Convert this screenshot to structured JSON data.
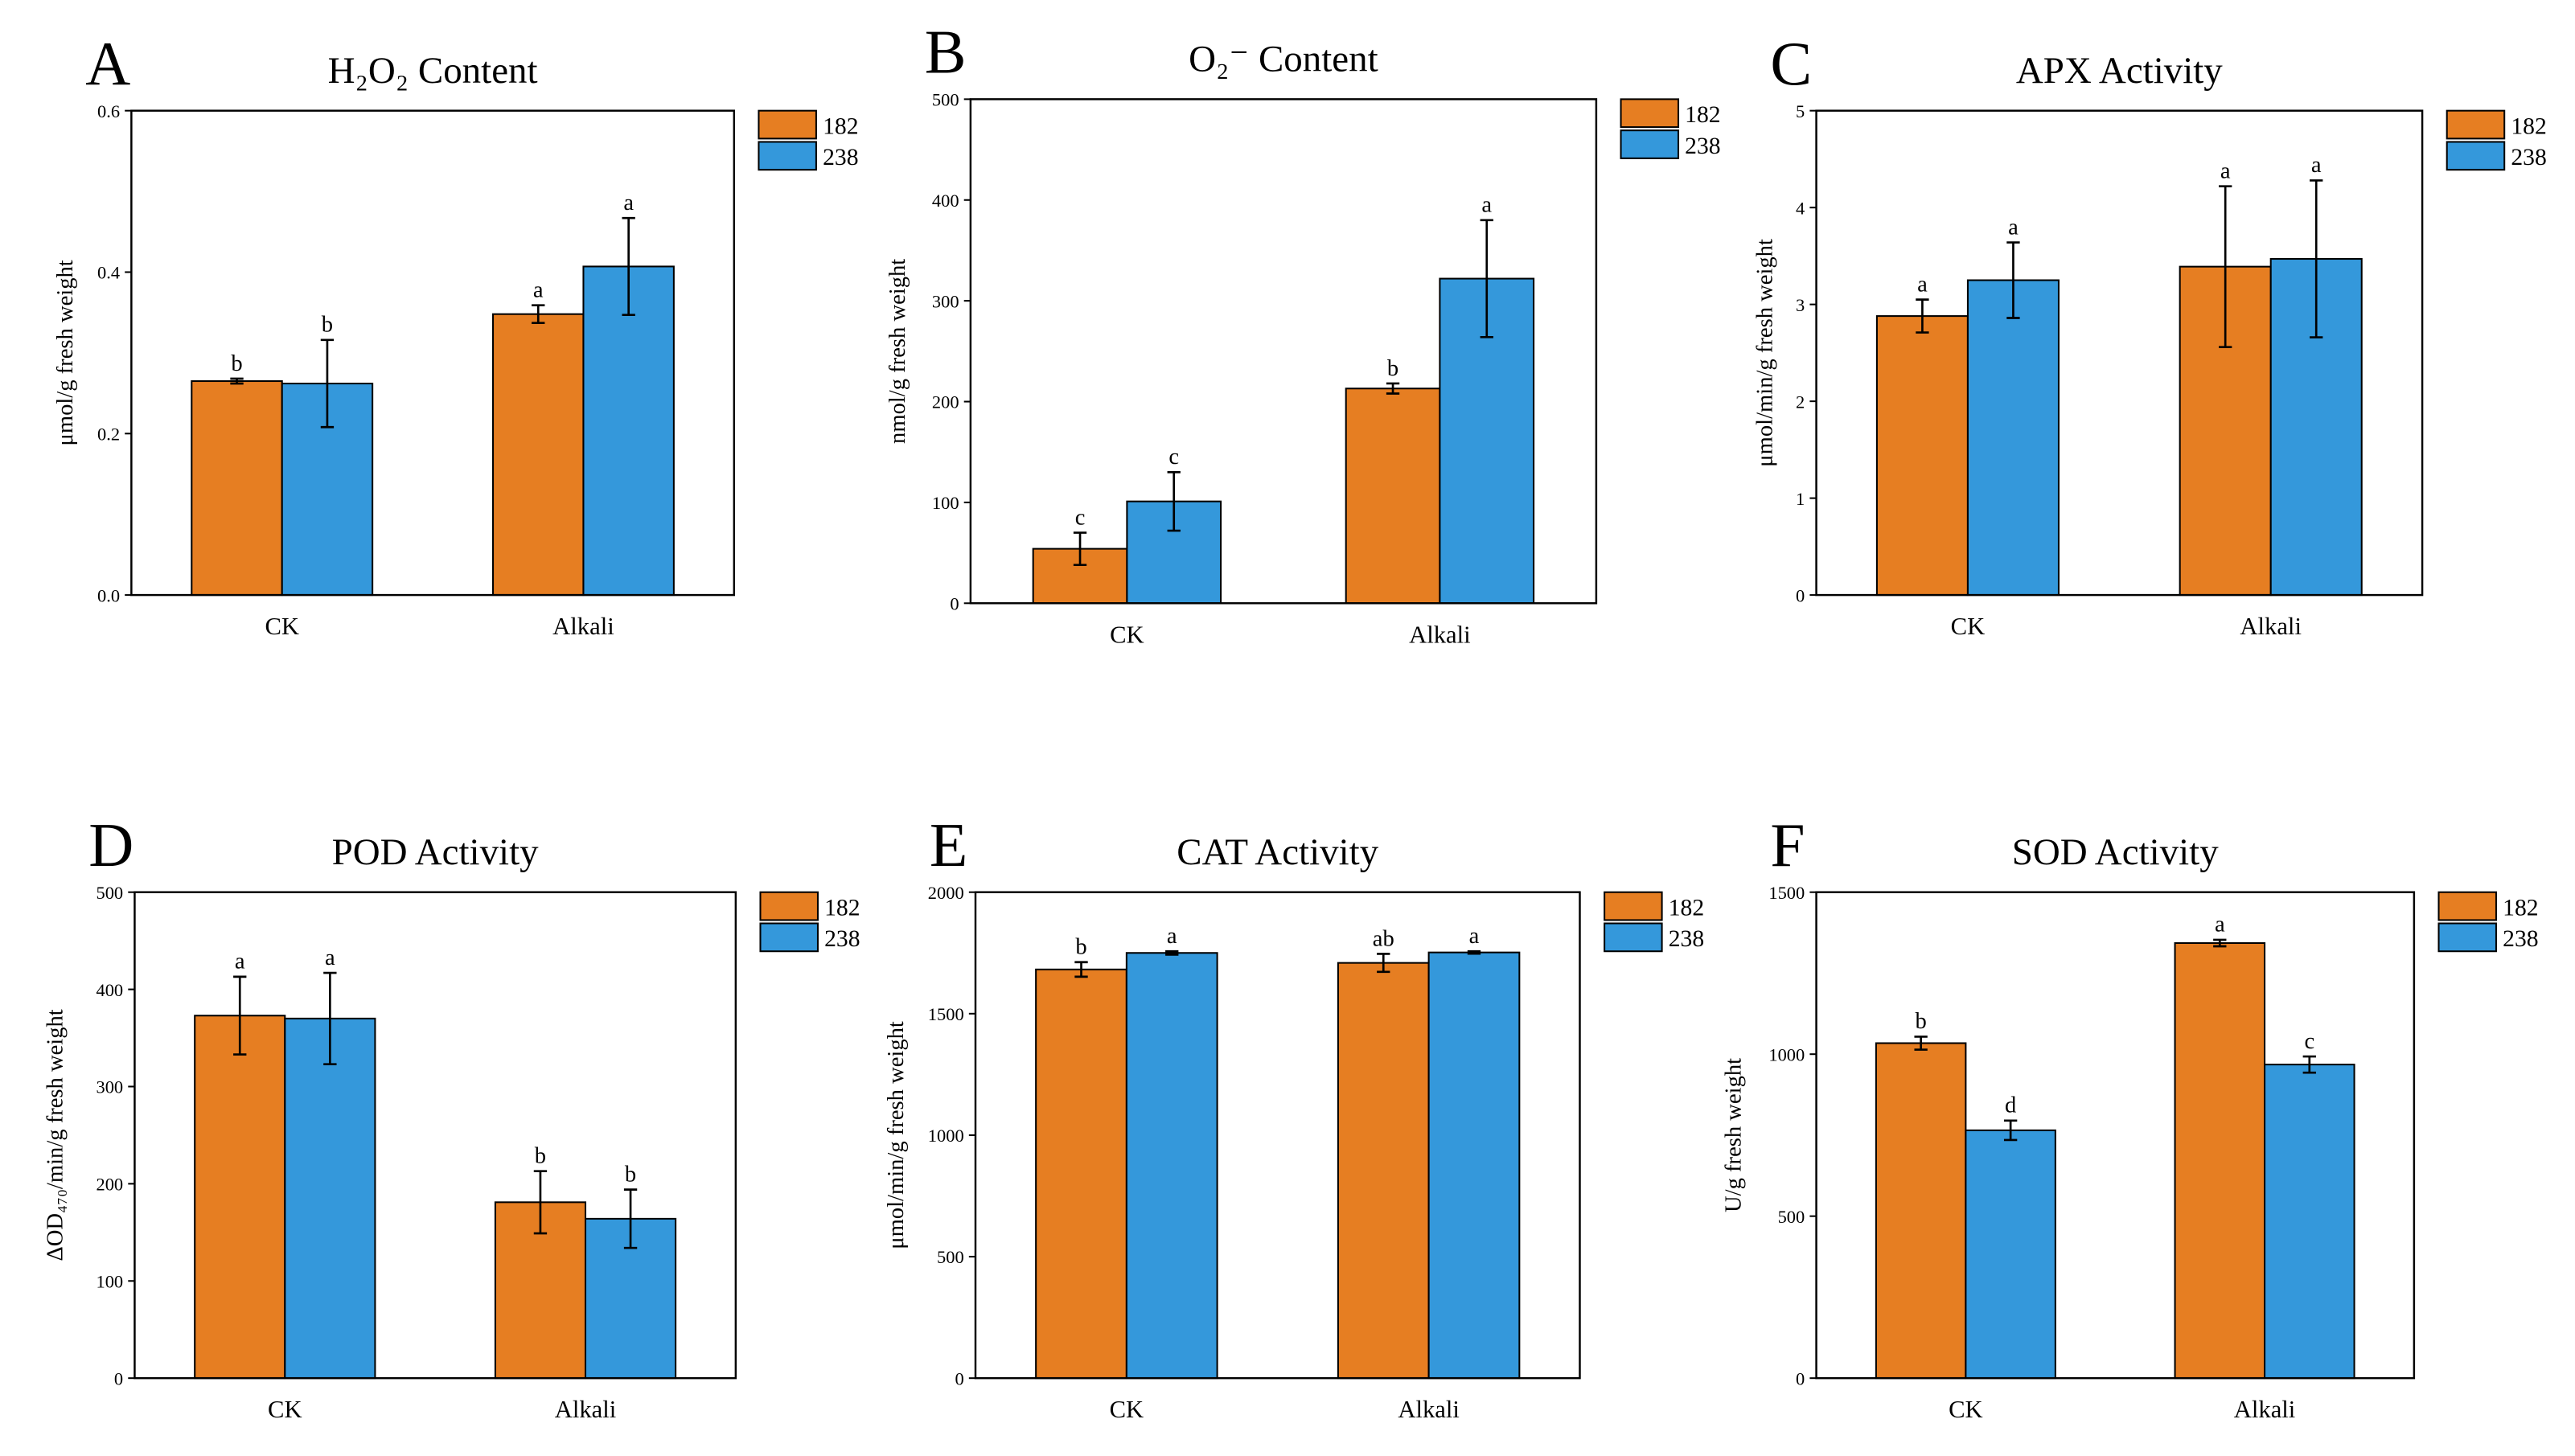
{
  "chart_data": [
    {
      "panel": "A",
      "type": "bar",
      "title": "H₂O₂ Content",
      "xlabel": "",
      "ylabel": "μmol/g fresh weight",
      "categories": [
        "CK",
        "Alkali"
      ],
      "ylim": [
        0,
        0.6
      ],
      "yticks": [
        "0.0",
        "0.2",
        "0.4",
        "0.6"
      ],
      "series": [
        {
          "name": "182",
          "color": "#E67E22",
          "values": [
            0.265,
            0.348
          ],
          "errors": [
            0.003,
            0.011
          ],
          "letters": [
            "b",
            "a"
          ]
        },
        {
          "name": "238",
          "color": "#3498DB",
          "values": [
            0.262,
            0.407
          ],
          "errors": [
            0.054,
            0.06
          ],
          "letters": [
            "b",
            "a"
          ]
        }
      ]
    },
    {
      "panel": "B",
      "type": "bar",
      "title": "O₂⁻ Content",
      "xlabel": "",
      "ylabel": "nmol/g fresh weight",
      "categories": [
        "CK",
        "Alkali"
      ],
      "ylim": [
        0,
        500
      ],
      "yticks": [
        "0",
        "100",
        "200",
        "300",
        "400",
        "500"
      ],
      "series": [
        {
          "name": "182",
          "color": "#E67E22",
          "values": [
            54,
            213
          ],
          "errors": [
            16,
            5
          ],
          "letters": [
            "c",
            "b"
          ]
        },
        {
          "name": "238",
          "color": "#3498DB",
          "values": [
            101,
            322
          ],
          "errors": [
            29,
            58
          ],
          "letters": [
            "c",
            "a"
          ]
        }
      ]
    },
    {
      "panel": "C",
      "type": "bar",
      "title": "APX Activity",
      "xlabel": "",
      "ylabel": "μmol/min/g fresh weight",
      "categories": [
        "CK",
        "Alkali"
      ],
      "ylim": [
        0,
        5
      ],
      "yticks": [
        "0",
        "1",
        "2",
        "3",
        "4",
        "5"
      ],
      "series": [
        {
          "name": "182",
          "color": "#E67E22",
          "values": [
            2.88,
            3.39
          ],
          "errors": [
            0.17,
            0.83
          ],
          "letters": [
            "a",
            "a"
          ]
        },
        {
          "name": "238",
          "color": "#3498DB",
          "values": [
            3.25,
            3.47
          ],
          "errors": [
            0.39,
            0.81
          ],
          "letters": [
            "a",
            "a"
          ]
        }
      ]
    },
    {
      "panel": "D",
      "type": "bar",
      "title": "POD Activity",
      "xlabel": "",
      "ylabel": "ΔOD₄₇₀/min/g fresh weight",
      "categories": [
        "CK",
        "Alkali"
      ],
      "ylim": [
        0,
        500
      ],
      "yticks": [
        "0",
        "100",
        "200",
        "300",
        "400",
        "500"
      ],
      "series": [
        {
          "name": "182",
          "color": "#E67E22",
          "values": [
            373,
            181
          ],
          "errors": [
            40,
            32
          ],
          "letters": [
            "a",
            "b"
          ]
        },
        {
          "name": "238",
          "color": "#3498DB",
          "values": [
            370,
            164
          ],
          "errors": [
            47,
            30
          ],
          "letters": [
            "a",
            "b"
          ]
        }
      ]
    },
    {
      "panel": "E",
      "type": "bar",
      "title": "CAT Activity",
      "xlabel": "",
      "ylabel": "μmol/min/g fresh weight",
      "categories": [
        "CK",
        "Alkali"
      ],
      "ylim": [
        0,
        2000
      ],
      "yticks": [
        "0",
        "500",
        "1000",
        "1500",
        "2000"
      ],
      "series": [
        {
          "name": "182",
          "color": "#E67E22",
          "values": [
            1682,
            1709
          ],
          "errors": [
            30,
            37
          ],
          "letters": [
            "b",
            "ab"
          ]
        },
        {
          "name": "238",
          "color": "#3498DB",
          "values": [
            1750,
            1752
          ],
          "errors": [
            7,
            5
          ],
          "letters": [
            "a",
            "a"
          ]
        }
      ]
    },
    {
      "panel": "F",
      "type": "bar",
      "title": "SOD Activity",
      "xlabel": "",
      "ylabel": "U/g fresh weight",
      "categories": [
        "CK",
        "Alkali"
      ],
      "ylim": [
        0,
        1500
      ],
      "yticks": [
        "0",
        "500",
        "1000",
        "1500"
      ],
      "series": [
        {
          "name": "182",
          "color": "#E67E22",
          "values": [
            1034,
            1343
          ],
          "errors": [
            20,
            10
          ],
          "letters": [
            "b",
            "a"
          ]
        },
        {
          "name": "238",
          "color": "#3498DB",
          "values": [
            765,
            968
          ],
          "errors": [
            30,
            25
          ],
          "letters": [
            "d",
            "c"
          ]
        }
      ]
    }
  ]
}
